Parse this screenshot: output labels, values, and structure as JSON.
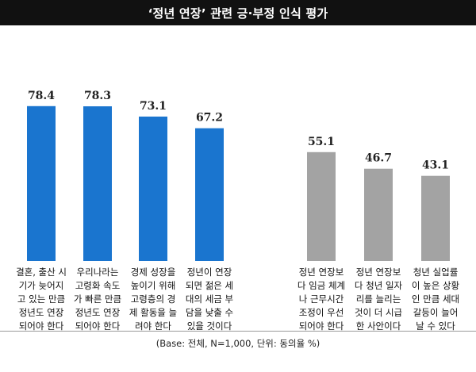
{
  "title": "‘정년 연장’ 관련 긍·부정 인식 평가",
  "footnote": "(Base: 전체, N=1,000, 단위: 동의율 %)",
  "colors": {
    "positive": "#1a75cf",
    "negative": "#a3a3a3",
    "title_bg": "#111111"
  },
  "chart_data": [
    {
      "type": "bar",
      "group": "positive",
      "categories": [
        "결혼, 출산 시\n기가 늦어지\n고 있는 만큼\n정년도 연장\n되어야 한다",
        "우리나라는\n고령화 속도\n가 빠른 만큼\n정년도 연장\n되어야 한다",
        "경제 성장을\n높이기 위해\n고령층의 경\n제 활동을 늘\n려야 한다",
        "정년이 연장\n되면 젊은 세\n대의 세금 부\n담을 낮출 수\n있을 것이다"
      ],
      "values": [
        78.4,
        78.3,
        73.1,
        67.2
      ],
      "ylim": [
        0,
        100
      ]
    },
    {
      "type": "bar",
      "group": "negative",
      "categories": [
        "정년 연장보\n다 임금 체계\n나 근무시간\n조정이 우선\n되어야 한다",
        "정년 연장보\n다 청년 일자\n리를 늘리는\n것이 더 시급\n한 사안이다",
        "청년 실업률\n이 높은 상황\n인 만큼 세대\n갈등이 늘어\n날 수 있다"
      ],
      "values": [
        55.1,
        46.7,
        43.1
      ],
      "ylim": [
        0,
        100
      ]
    }
  ]
}
